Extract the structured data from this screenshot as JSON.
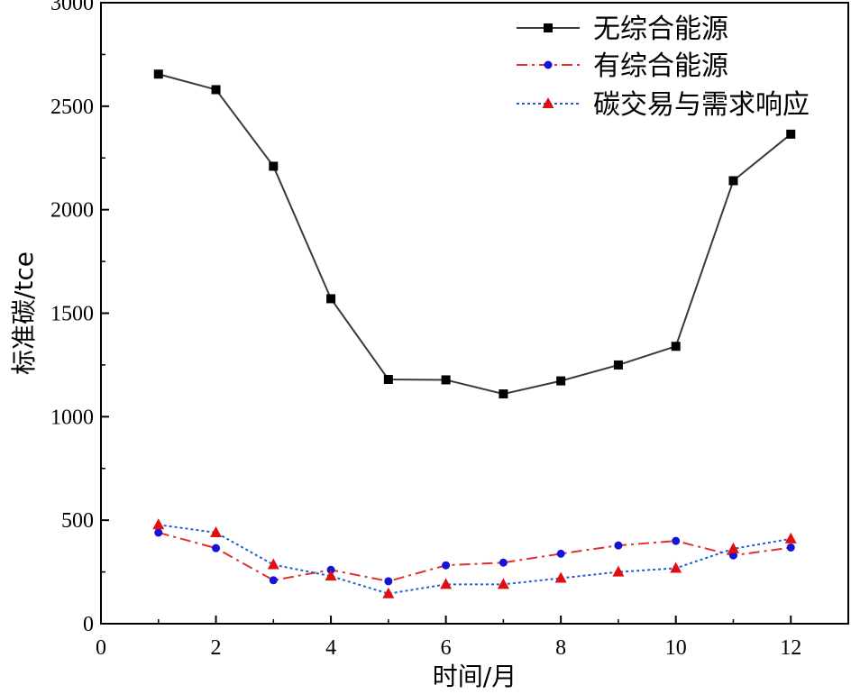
{
  "chart_data": {
    "type": "line",
    "title": "",
    "xlabel": "时间/月",
    "ylabel": "标准碳/tce",
    "xlim": [
      0,
      13
    ],
    "ylim": [
      0,
      3000
    ],
    "xticks": [
      0,
      2,
      4,
      6,
      8,
      10,
      12
    ],
    "yticks": [
      0,
      500,
      1000,
      1500,
      2000,
      2500,
      3000
    ],
    "grid": false,
    "legend_position": "top-right",
    "x": [
      1,
      2,
      3,
      4,
      5,
      6,
      7,
      8,
      9,
      10,
      11,
      12
    ],
    "series": [
      {
        "name": "无综合能源",
        "color": "#3a3a3a",
        "marker": "square",
        "marker_color": "#000000",
        "line_style": "solid",
        "values": [
          2655,
          2580,
          2210,
          1570,
          1180,
          1178,
          1110,
          1173,
          1250,
          1340,
          2140,
          2365
        ]
      },
      {
        "name": "有综合能源",
        "color": "#e03030",
        "marker": "circle",
        "marker_color": "#1414d8",
        "line_style": "dashdot",
        "values": [
          440,
          365,
          210,
          260,
          205,
          282,
          295,
          338,
          378,
          400,
          330,
          368
        ]
      },
      {
        "name": "碳交易与需求响应",
        "color": "#1f5fd0",
        "marker": "triangle",
        "marker_color": "#e01010",
        "line_style": "dotted",
        "values": [
          478,
          440,
          285,
          230,
          145,
          190,
          190,
          220,
          250,
          268,
          362,
          410
        ]
      }
    ]
  }
}
